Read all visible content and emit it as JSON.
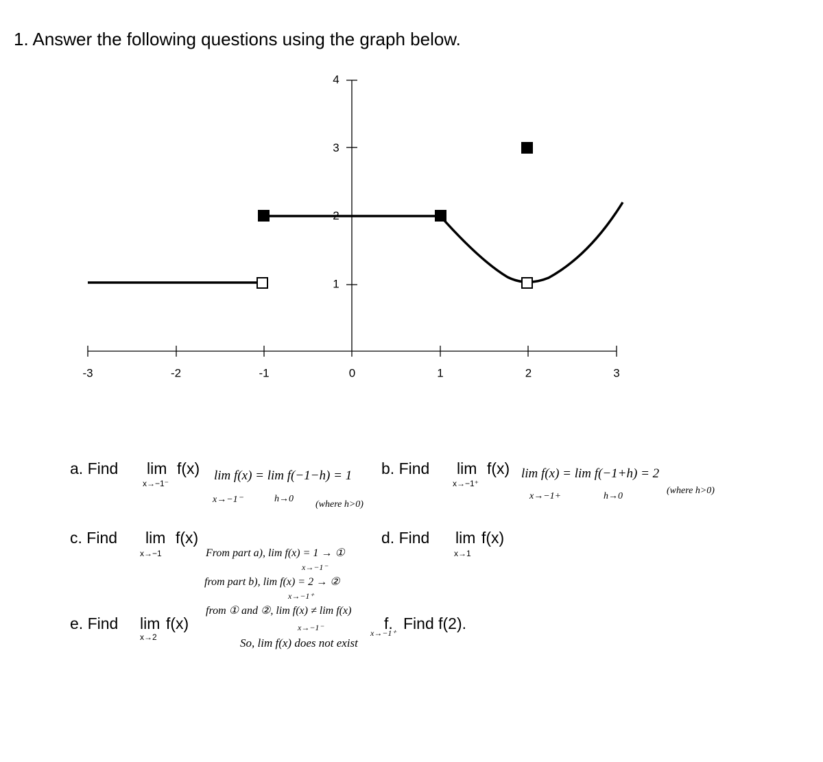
{
  "title": "1. Answer the following questions using the graph below.",
  "graph": {
    "x_tick_labels": [
      "-3",
      "-2",
      "-1",
      "0",
      "1",
      "2",
      "3"
    ],
    "y_tick_labels": [
      "1",
      "2",
      "3",
      "4"
    ]
  },
  "questions": [
    {
      "prefix": "a. Find",
      "lim": "lim",
      "under": "x→−1⁻",
      "func": "f(x)"
    },
    {
      "prefix": "b. Find",
      "lim": "lim",
      "under": "x→−1⁺",
      "func": "f(x)"
    },
    {
      "prefix": "c. Find",
      "lim": "lim",
      "under": "x→−1",
      "func": "f(x)"
    },
    {
      "prefix": "d. Find",
      "lim": "lim",
      "under": "x→1",
      "func": "f(x)"
    },
    {
      "prefix": "e. Find",
      "lim": "lim",
      "under": "x→2",
      "func": "f(x)"
    },
    {
      "prefix": "f.",
      "rest": "Find f(2)."
    }
  ],
  "answers": {
    "a": [
      "lim f(x) = lim f(−1−h) = 1",
      "x→−1⁻",
      "h→0",
      "(where h>0)"
    ],
    "b": [
      "lim f(x) = lim f(−1+h) = 2",
      "x→−1+",
      "h→0",
      "(where h>0)"
    ],
    "c": [
      "From part a), lim f(x) = 1 → ①",
      "x→−1⁻",
      "from part b), lim f(x) = 2 → ②",
      "x→−1⁺",
      "from ① and ②, lim f(x) ≠ lim f(x)",
      "x→−1⁻",
      "x→−1⁺",
      "So, lim f(x) does not exist"
    ]
  }
}
